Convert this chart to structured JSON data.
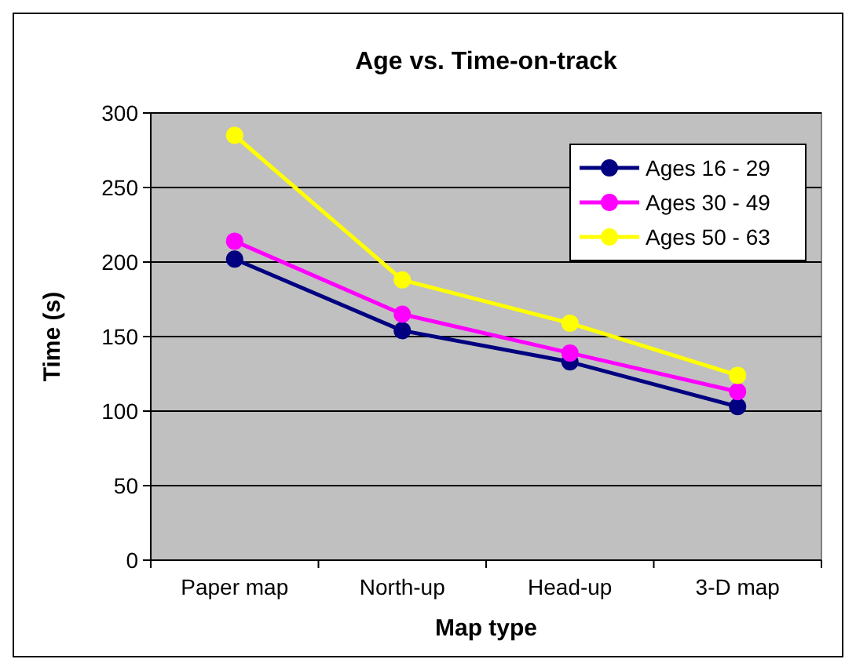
{
  "chart_data": {
    "type": "line",
    "title": "Age vs. Time-on-track",
    "xlabel": "Map type",
    "ylabel": "Time (s)",
    "categories": [
      "Paper map",
      "North-up",
      "Head-up",
      "3-D map"
    ],
    "series": [
      {
        "name": "Ages 16 - 29",
        "color": "#000080",
        "values": [
          202,
          154,
          133,
          103
        ]
      },
      {
        "name": "Ages 30 - 49",
        "color": "#ff00ff",
        "values": [
          214,
          165,
          139,
          113
        ]
      },
      {
        "name": "Ages 50 - 63",
        "color": "#ffff00",
        "values": [
          285,
          188,
          159,
          124
        ]
      }
    ],
    "ylim": [
      0,
      300
    ],
    "yticks": [
      0,
      50,
      100,
      150,
      200,
      250,
      300
    ],
    "grid": "y",
    "legend": "top right",
    "marker": "circle"
  }
}
